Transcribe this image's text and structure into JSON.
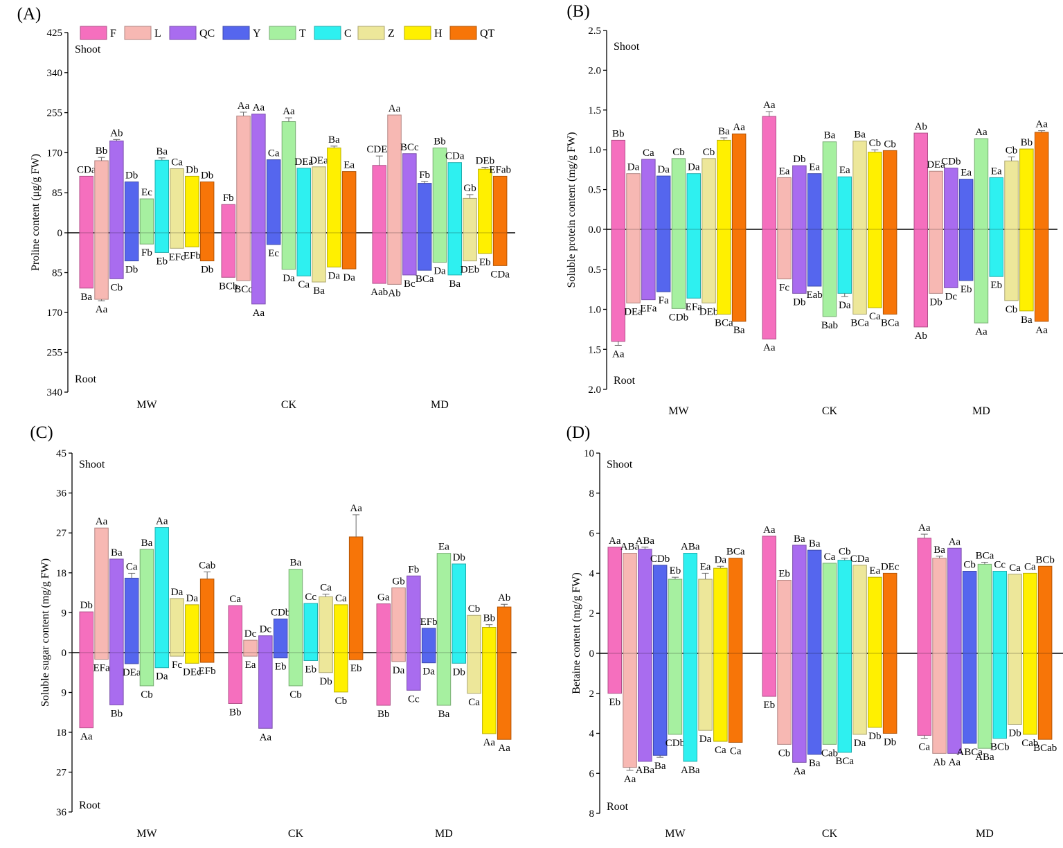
{
  "legend": [
    {
      "label": "F",
      "color": "#f56fbe"
    },
    {
      "label": "L",
      "color": "#f7b8b3"
    },
    {
      "label": "QC",
      "color": "#a96cef"
    },
    {
      "label": "Y",
      "color": "#5566ee"
    },
    {
      "label": "T",
      "color": "#a6f0a0"
    },
    {
      "label": "C",
      "color": "#2ef0f0"
    },
    {
      "label": "Z",
      "color": "#ede79a"
    },
    {
      "label": "H",
      "color": "#fff000"
    },
    {
      "label": "QT",
      "color": "#f77508"
    }
  ],
  "chart_data": [
    {
      "panel": "(A)",
      "type": "bar",
      "orientation": "diverging",
      "ylabel": "Proline content (μg/g FW)",
      "top_label": "Shoot",
      "bottom_label": "Root",
      "groups": [
        "MW",
        "CK",
        "MD"
      ],
      "series": [
        "F",
        "L",
        "QC",
        "Y",
        "T",
        "C",
        "Z",
        "H",
        "QT"
      ],
      "ylim_top": 425,
      "ylim_bottom": 340,
      "ticks_top": [
        0,
        85,
        170,
        255,
        340,
        425
      ],
      "ticks_bottom": [
        85,
        170,
        255,
        340
      ],
      "tick_labels_top": [
        "0",
        "85",
        "170",
        "255",
        "340",
        "425"
      ],
      "tick_labels_bottom": [
        "85",
        "170",
        "255",
        "340"
      ],
      "shoot_values": [
        [
          120,
          153,
          195,
          108,
          72,
          154,
          136,
          120,
          108
        ],
        [
          60,
          248,
          252,
          155,
          236,
          137,
          140,
          180,
          130
        ],
        [
          143,
          250,
          168,
          105,
          180,
          149,
          73,
          135,
          120
        ]
      ],
      "shoot_errors": [
        [
          0,
          7,
          3,
          0,
          0,
          5,
          0,
          0,
          0
        ],
        [
          0,
          8,
          0,
          0,
          8,
          0,
          0,
          4,
          0
        ],
        [
          20,
          0,
          0,
          4,
          0,
          0,
          8,
          4,
          0
        ]
      ],
      "shoot_labels": [
        [
          "CDa",
          "Bb",
          "Ab",
          "Db",
          "Ec",
          "Ba",
          "Ca",
          "Db",
          "Db"
        ],
        [
          "Fb",
          "Aa",
          "Aa",
          "Ca",
          "Aa",
          "DEa",
          "DEa",
          "Ba",
          "Ea"
        ],
        [
          "CDEa",
          "Aa",
          "BCc",
          "Fb",
          "Bb",
          "CDa",
          "Gb",
          "DEb",
          "EFab"
        ]
      ],
      "root_values": [
        [
          118,
          142,
          98,
          60,
          24,
          42,
          33,
          30,
          60
        ],
        [
          95,
          102,
          152,
          25,
          78,
          92,
          105,
          73,
          77
        ],
        [
          108,
          110,
          90,
          80,
          63,
          90,
          60,
          44,
          70
        ]
      ],
      "root_errors": [
        [
          0,
          3,
          0,
          0,
          0,
          0,
          0,
          0,
          0
        ],
        [
          0,
          0,
          0,
          0,
          0,
          0,
          0,
          0,
          0
        ],
        [
          0,
          0,
          0,
          0,
          0,
          0,
          0,
          0,
          0
        ]
      ],
      "root_labels": [
        [
          "Ba",
          "Aa",
          "Cb",
          "Db",
          "Fb",
          "Eb",
          "EFc",
          "EFb",
          "Db"
        ],
        [
          "BCb",
          "BCc",
          "Aa",
          "Ec",
          "Da",
          "Ca",
          "Ba",
          "Da",
          "Da"
        ],
        [
          "Aab",
          "Ab",
          "Bc",
          "BCa",
          "Da",
          "Ba",
          "DEb",
          "Eb",
          "CDa"
        ]
      ]
    },
    {
      "panel": "(B)",
      "type": "bar",
      "orientation": "diverging",
      "ylabel": "Soluble protein content (mg/g FW)",
      "top_label": "Shoot",
      "bottom_label": "Root",
      "groups": [
        "MW",
        "CK",
        "MD"
      ],
      "series": [
        "F",
        "L",
        "QC",
        "Y",
        "T",
        "C",
        "Z",
        "H",
        "QT"
      ],
      "ylim_top": 2.5,
      "ylim_bottom": 2.0,
      "ticks_top": [
        0,
        0.5,
        1.0,
        1.5,
        2.0,
        2.5
      ],
      "ticks_bottom": [
        0.5,
        1.0,
        1.5,
        2.0
      ],
      "tick_labels_top": [
        "0.0",
        "0.5",
        "1.0",
        "1.5",
        "2.0",
        "2.5"
      ],
      "tick_labels_bottom": [
        "0.5",
        "1.0",
        "1.5",
        "2.0"
      ],
      "shoot_values": [
        [
          1.12,
          0.7,
          0.88,
          0.67,
          0.89,
          0.7,
          0.89,
          1.12,
          1.2
        ],
        [
          1.42,
          0.65,
          0.8,
          0.7,
          1.1,
          0.66,
          1.11,
          0.97,
          0.99
        ],
        [
          1.21,
          0.73,
          0.77,
          0.63,
          1.14,
          0.65,
          0.86,
          1.01,
          1.22
        ]
      ],
      "shoot_errors": [
        [
          0,
          0,
          0,
          0,
          0,
          0,
          0,
          0.03,
          0
        ],
        [
          0.06,
          0,
          0,
          0,
          0,
          0,
          0,
          0.03,
          0
        ],
        [
          0,
          0,
          0,
          0,
          0,
          0,
          0.05,
          0,
          0.02
        ]
      ],
      "shoot_labels": [
        [
          "Bb",
          "Da",
          "Ca",
          "Da",
          "Cb",
          "Da",
          "Cb",
          "Ba",
          "Aa"
        ],
        [
          "Aa",
          "Ea",
          "Db",
          "Ea",
          "Ba",
          "Ea",
          "Ba",
          "Cb",
          "Cb"
        ],
        [
          "Ab",
          "DEa",
          "CDb",
          "Ea",
          "Aa",
          "Ea",
          "Cb",
          "Bb",
          "Aa"
        ]
      ],
      "root_values": [
        [
          1.4,
          0.92,
          0.88,
          0.78,
          0.99,
          0.86,
          0.92,
          1.06,
          1.15
        ],
        [
          1.37,
          0.62,
          0.8,
          0.71,
          1.09,
          0.8,
          1.06,
          0.98,
          1.06
        ],
        [
          1.22,
          0.8,
          0.73,
          0.64,
          1.17,
          0.59,
          0.89,
          1.02,
          1.15
        ]
      ],
      "root_errors": [
        [
          0.05,
          0,
          0,
          0,
          0,
          0,
          0,
          0,
          0
        ],
        [
          0,
          0,
          0,
          0,
          0,
          0.04,
          0,
          0,
          0
        ],
        [
          0,
          0,
          0,
          0,
          0,
          0,
          0,
          0,
          0
        ]
      ],
      "root_labels": [
        [
          "Aa",
          "DEa",
          "EFa",
          "Fa",
          "CDb",
          "EFa",
          "DEb",
          "BCa",
          "Ba"
        ],
        [
          "Aa",
          "Fc",
          "Db",
          "Eab",
          "Bab",
          "Da",
          "BCa",
          "Ca",
          "BCa"
        ],
        [
          "Ab",
          "Db",
          "Dc",
          "Eb",
          "Aa",
          "Eb",
          "Cb",
          "Ba",
          "Aa"
        ]
      ]
    },
    {
      "panel": "(C)",
      "type": "bar",
      "orientation": "diverging",
      "ylabel": "Soluble sugar content (mg/g FW)",
      "top_label": "Shoot",
      "bottom_label": "Root",
      "groups": [
        "MW",
        "CK",
        "MD"
      ],
      "series": [
        "F",
        "L",
        "QC",
        "Y",
        "T",
        "C",
        "Z",
        "H",
        "QT"
      ],
      "ylim_top": 45,
      "ylim_bottom": 36,
      "ticks_top": [
        0,
        9,
        18,
        27,
        36,
        45
      ],
      "ticks_bottom": [
        9,
        18,
        27,
        36
      ],
      "tick_labels_top": [
        "0",
        "9",
        "18",
        "27",
        "36",
        "45"
      ],
      "tick_labels_bottom": [
        "9",
        "18",
        "27",
        "36"
      ],
      "shoot_values": [
        [
          9.2,
          28.1,
          21.1,
          16.8,
          23.3,
          28.2,
          12.2,
          10.8,
          16.6
        ],
        [
          10.6,
          2.8,
          3.8,
          7.6,
          18.8,
          11.1,
          12.6,
          10.8,
          26.1
        ],
        [
          11.0,
          14.6,
          17.3,
          5.5,
          22.4,
          20.0,
          8.4,
          5.7,
          10.3
        ]
      ],
      "shoot_errors": [
        [
          0,
          0,
          0,
          1.1,
          0,
          0,
          0,
          0,
          1.6
        ],
        [
          0,
          0,
          0,
          0,
          0,
          0,
          0.6,
          0,
          5.0
        ],
        [
          0,
          0,
          0,
          0,
          0,
          0,
          0,
          0.6,
          0.6
        ]
      ],
      "shoot_labels": [
        [
          "Db",
          "Aa",
          "Ba",
          "Ca",
          "Ba",
          "Aa",
          "Da",
          "Da",
          "Cab"
        ],
        [
          "Ca",
          "Dc",
          "Dc",
          "CDb",
          "Ba",
          "Cc",
          "Ca",
          "Ca",
          "Aa"
        ],
        [
          "Ga",
          "Gb",
          "Fb",
          "EFb",
          "Ea",
          "Db",
          "Cb",
          "Bb",
          "Ab"
        ]
      ],
      "root_values": [
        [
          17.0,
          1.5,
          11.8,
          2.5,
          7.5,
          3.4,
          0.8,
          2.4,
          2.2
        ],
        [
          11.5,
          0.8,
          17.1,
          1.2,
          7.5,
          1.8,
          4.5,
          8.9,
          1.6
        ],
        [
          11.9,
          2.0,
          8.5,
          2.3,
          11.9,
          2.4,
          9.2,
          18.3,
          19.6
        ]
      ],
      "root_errors": [
        [
          0,
          0,
          0,
          0,
          0,
          0,
          0,
          0,
          0
        ],
        [
          0,
          0,
          0,
          0,
          0,
          0,
          0,
          0,
          0
        ],
        [
          0,
          0,
          0,
          0,
          0,
          0,
          0,
          0,
          0
        ]
      ],
      "root_labels": [
        [
          "Aa",
          "EFa",
          "Bb",
          "DEa",
          "Cb",
          "Da",
          "Fc",
          "DEc",
          "EFb"
        ],
        [
          "Bb",
          "Ea",
          "Aa",
          "Eb",
          "Cb",
          "Eb",
          "Db",
          "Cb",
          "Eb"
        ],
        [
          "Bb",
          "Da",
          "Cc",
          "Da",
          "Ba",
          "Db",
          "Ca",
          "Aa",
          "Aa"
        ]
      ]
    },
    {
      "panel": "(D)",
      "type": "bar",
      "orientation": "diverging",
      "ylabel": "Betaine content (mg/g FW)",
      "top_label": "Shoot",
      "bottom_label": "Root",
      "groups": [
        "MW",
        "CK",
        "MD"
      ],
      "series": [
        "F",
        "L",
        "QC",
        "Y",
        "T",
        "C",
        "Z",
        "H",
        "QT"
      ],
      "ylim_top": 10,
      "ylim_bottom": 8,
      "ticks_top": [
        0,
        2,
        4,
        6,
        8,
        10
      ],
      "ticks_bottom": [
        2,
        4,
        6,
        8
      ],
      "tick_labels_top": [
        "0",
        "2",
        "4",
        "6",
        "8",
        "10"
      ],
      "tick_labels_bottom": [
        "2",
        "4",
        "6",
        "8"
      ],
      "shoot_values": [
        [
          5.3,
          5.0,
          5.2,
          4.4,
          3.7,
          5.0,
          3.7,
          4.25,
          4.75
        ],
        [
          5.85,
          3.65,
          5.4,
          5.15,
          4.5,
          4.65,
          4.4,
          3.8,
          4.0
        ],
        [
          5.75,
          4.75,
          5.25,
          4.1,
          4.45,
          4.1,
          3.95,
          4.0,
          4.35
        ]
      ],
      "shoot_errors": [
        [
          0,
          0,
          0.1,
          0,
          0.1,
          0,
          0.3,
          0.1,
          0
        ],
        [
          0,
          0,
          0,
          0,
          0,
          0.1,
          0,
          0,
          0
        ],
        [
          0.2,
          0.1,
          0,
          0,
          0.1,
          0,
          0,
          0,
          0
        ]
      ],
      "shoot_labels": [
        [
          "Aa",
          "ABa",
          "ABa",
          "CDb",
          "Eb",
          "ABa",
          "Ea",
          "Da",
          "BCa"
        ],
        [
          "Aa",
          "Eb",
          "Ba",
          "Ba",
          "Ca",
          "Cb",
          "CDa",
          "Ea",
          "DEc"
        ],
        [
          "Aa",
          "Ba",
          "Aa",
          "Cb",
          "BCa",
          "Cc",
          "Ca",
          "Ca",
          "BCb"
        ]
      ],
      "root_values": [
        [
          2.0,
          5.7,
          5.4,
          5.1,
          4.05,
          5.4,
          3.85,
          4.4,
          4.45
        ],
        [
          2.15,
          4.55,
          5.45,
          5.05,
          4.55,
          4.95,
          4.05,
          3.7,
          4.0
        ],
        [
          4.1,
          5.0,
          5.0,
          4.5,
          4.75,
          4.25,
          3.55,
          4.05,
          4.3
        ]
      ],
      "root_errors": [
        [
          0,
          0.15,
          0,
          0.1,
          0,
          0,
          0,
          0,
          0
        ],
        [
          0,
          0,
          0,
          0,
          0,
          0,
          0,
          0,
          0
        ],
        [
          0.15,
          0,
          0,
          0,
          0,
          0,
          0,
          0,
          0
        ]
      ],
      "root_labels": [
        [
          "Eb",
          "Aa",
          "ABa",
          "Ba",
          "CDb",
          "ABa",
          "Da",
          "Ca",
          "Ca"
        ],
        [
          "Eb",
          "Cb",
          "Aa",
          "Ba",
          "Cab",
          "BCa",
          "Da",
          "Db",
          "Db"
        ],
        [
          "Ca",
          "Ab",
          "Aa",
          "ABCa",
          "ABa",
          "BCb",
          "Db",
          "Cab",
          "BCab"
        ]
      ]
    }
  ]
}
